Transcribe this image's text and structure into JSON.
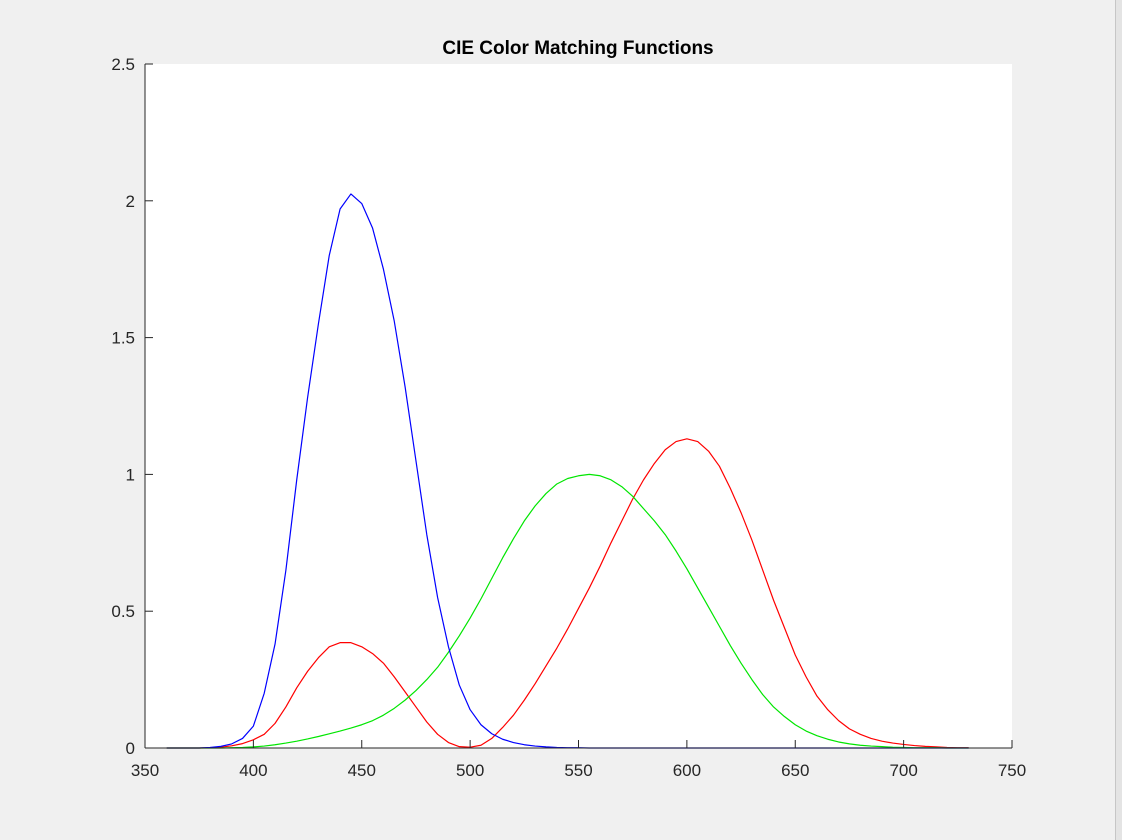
{
  "chart_data": {
    "type": "line",
    "title": "CIE Color Matching Functions",
    "xlabel": "",
    "ylabel": "",
    "xlim": [
      350,
      750
    ],
    "ylim": [
      0,
      2.5
    ],
    "xticks": [
      350,
      400,
      450,
      500,
      550,
      600,
      650,
      700,
      750
    ],
    "xtick_labels": [
      "350",
      "400",
      "450",
      "500",
      "550",
      "600",
      "650",
      "700",
      "750"
    ],
    "yticks": [
      0,
      0.5,
      1,
      1.5,
      2,
      2.5
    ],
    "ytick_labels": [
      "0",
      "0.5",
      "1",
      "1.5",
      "2",
      "2.5"
    ],
    "grid": false,
    "legend": "none",
    "x": [
      360,
      365,
      370,
      375,
      380,
      385,
      390,
      395,
      400,
      405,
      410,
      415,
      420,
      425,
      430,
      435,
      440,
      445,
      450,
      455,
      460,
      465,
      470,
      475,
      480,
      485,
      490,
      495,
      500,
      505,
      510,
      515,
      520,
      525,
      530,
      535,
      540,
      545,
      550,
      555,
      560,
      565,
      570,
      575,
      580,
      585,
      590,
      595,
      600,
      605,
      610,
      615,
      620,
      625,
      630,
      635,
      640,
      645,
      650,
      655,
      660,
      665,
      670,
      675,
      680,
      685,
      690,
      695,
      700,
      705,
      710,
      715,
      720,
      725,
      730
    ],
    "series": [
      {
        "color": "#ff0000",
        "values": [
          0,
          0,
          0,
          0,
          0.001,
          0.003,
          0.008,
          0.016,
          0.03,
          0.05,
          0.09,
          0.15,
          0.22,
          0.28,
          0.33,
          0.37,
          0.385,
          0.385,
          0.37,
          0.345,
          0.31,
          0.26,
          0.205,
          0.15,
          0.095,
          0.05,
          0.02,
          0.005,
          0.003,
          0.01,
          0.035,
          0.075,
          0.12,
          0.175,
          0.235,
          0.3,
          0.365,
          0.435,
          0.51,
          0.585,
          0.665,
          0.75,
          0.83,
          0.91,
          0.98,
          1.04,
          1.09,
          1.12,
          1.13,
          1.12,
          1.085,
          1.03,
          0.95,
          0.86,
          0.76,
          0.65,
          0.54,
          0.44,
          0.34,
          0.26,
          0.19,
          0.14,
          0.1,
          0.07,
          0.05,
          0.035,
          0.025,
          0.018,
          0.013,
          0.009,
          0.006,
          0.004,
          0.002,
          0.001,
          0.001
        ]
      },
      {
        "color": "#00e600",
        "values": [
          0,
          0,
          0,
          0,
          0,
          0,
          0.001,
          0.002,
          0.004,
          0.007,
          0.012,
          0.018,
          0.025,
          0.033,
          0.042,
          0.052,
          0.062,
          0.073,
          0.085,
          0.1,
          0.12,
          0.145,
          0.175,
          0.21,
          0.25,
          0.295,
          0.35,
          0.41,
          0.475,
          0.545,
          0.62,
          0.695,
          0.765,
          0.83,
          0.885,
          0.93,
          0.965,
          0.985,
          0.995,
          1,
          0.995,
          0.98,
          0.955,
          0.92,
          0.875,
          0.83,
          0.78,
          0.72,
          0.655,
          0.585,
          0.515,
          0.445,
          0.375,
          0.31,
          0.25,
          0.195,
          0.15,
          0.115,
          0.085,
          0.062,
          0.045,
          0.032,
          0.022,
          0.015,
          0.01,
          0.007,
          0.005,
          0.003,
          0.002,
          0.001,
          0.001,
          0.001,
          0,
          0,
          0
        ]
      },
      {
        "color": "#0000ff",
        "values": [
          0,
          0,
          0,
          0,
          0.002,
          0.006,
          0.015,
          0.035,
          0.08,
          0.2,
          0.38,
          0.65,
          0.98,
          1.28,
          1.55,
          1.8,
          1.97,
          2.025,
          1.99,
          1.9,
          1.75,
          1.56,
          1.32,
          1.05,
          0.78,
          0.55,
          0.37,
          0.23,
          0.14,
          0.085,
          0.052,
          0.032,
          0.02,
          0.012,
          0.007,
          0.004,
          0.002,
          0.001,
          0.001,
          0,
          0,
          0,
          0,
          0,
          0,
          0,
          0,
          0,
          0,
          0,
          0,
          0,
          0,
          0,
          0,
          0,
          0,
          0,
          0,
          0,
          0,
          0,
          0,
          0,
          0,
          0,
          0,
          0,
          0,
          0,
          0,
          0,
          0,
          0,
          0
        ]
      }
    ]
  }
}
